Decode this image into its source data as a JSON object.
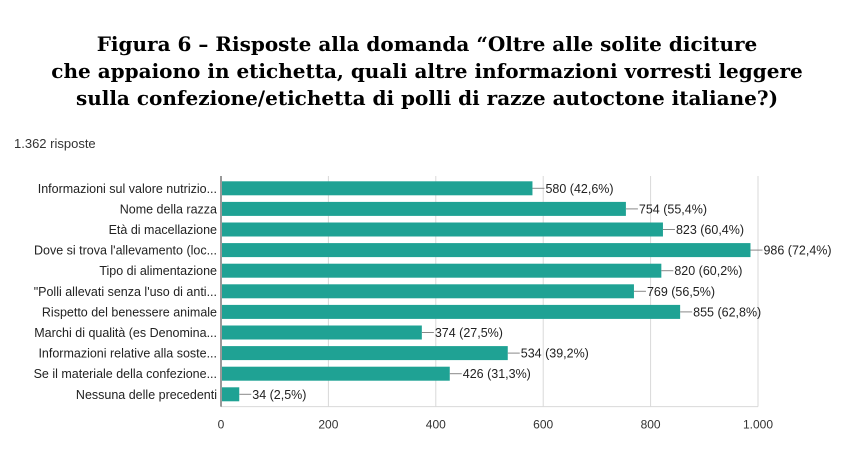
{
  "figure": {
    "title_lines": [
      "Figura 6 – Risposte alla domanda “Oltre alle solite diciture",
      "che appaiono in etichetta, quali altre informazioni vorresti leggere",
      "sulla confezione/etichetta di polli di razze autoctone italiane?)"
    ],
    "responses_count": "1.362 risposte"
  },
  "colors": {
    "bar": "#1fa294",
    "grid": "#d9d9d9",
    "axis": "#333333",
    "label": "#222222",
    "leader": "#888888"
  },
  "chart_data": {
    "type": "bar",
    "orientation": "horizontal",
    "categories": [
      "Informazioni sul valore nutrizio...",
      "Nome della razza",
      "Età di macellazione",
      "Dove si trova l'allevamento (loc...",
      "Tipo di alimentazione",
      "\"Polli allevati senza l'uso di anti...",
      "Rispetto del benessere animale",
      "Marchi di qualità (es Denomina...",
      "Informazioni relative alla soste...",
      "Se il materiale della confezione...",
      "Nessuna delle precedenti"
    ],
    "values": [
      580,
      754,
      823,
      986,
      820,
      769,
      855,
      374,
      534,
      426,
      34
    ],
    "data_labels": [
      "580 (42,6%)",
      "754 (55,4%)",
      "823 (60,4%)",
      "986 (72,4%)",
      "820 (60,2%)",
      "769 (56,5%)",
      "855 (62,8%)",
      "374 (27,5%)",
      "534 (39,2%)",
      "426 (31,3%)",
      "34 (2,5%)"
    ],
    "x_ticks": [
      0,
      200,
      400,
      600,
      800,
      1000
    ],
    "x_tick_labels": [
      "0",
      "200",
      "400",
      "600",
      "800",
      "1.000"
    ],
    "xlim": [
      0,
      1000
    ],
    "grid": true,
    "legend": "none"
  }
}
